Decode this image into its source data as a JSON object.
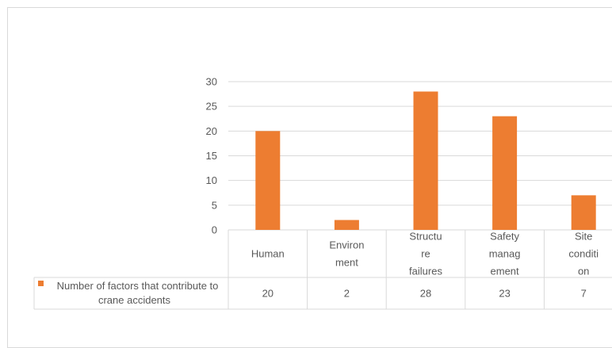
{
  "chart_data": {
    "type": "bar",
    "categories": [
      [
        "Human"
      ],
      [
        "Environ",
        "ment"
      ],
      [
        "Structu",
        "re",
        "failures"
      ],
      [
        "Safety",
        "manag",
        "ement"
      ],
      [
        "Site",
        "conditi",
        "on"
      ]
    ],
    "series": [
      {
        "name": [
          "Number of factors that contribute to",
          "crane accidents"
        ],
        "values": [
          20,
          2,
          28,
          23,
          7
        ]
      }
    ],
    "ylim": [
      0,
      30
    ],
    "yticks": [
      0,
      5,
      10,
      15,
      20,
      25,
      30
    ],
    "grid": true,
    "data_table": true,
    "colors": {
      "bar": "#ED7D31",
      "grid": "#d9d9d9",
      "text": "#595959"
    }
  }
}
